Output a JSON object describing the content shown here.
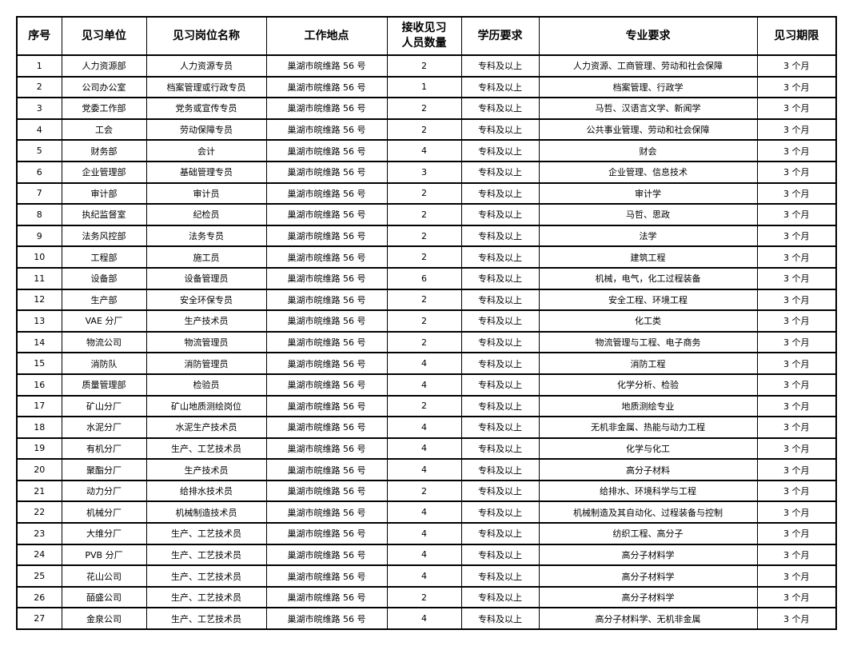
{
  "headers": [
    "序号",
    "见习单位",
    "见习岗位名称",
    "工作地点",
    "接收见习\n人员数量",
    "学历要求",
    "专业要求",
    "见习期限"
  ],
  "headers_lines": {
    "count_1": "接收见习",
    "count_2": "人员数量"
  },
  "rows": [
    [
      "1",
      "人力资源部",
      "人力资源专员",
      "巢湖市皖维路 56 号",
      "2",
      "专科及以上",
      "人力资源、工商管理、劳动和社会保障",
      "3 个月"
    ],
    [
      "2",
      "公司办公室",
      "档案管理或行政专员",
      "巢湖市皖维路 56 号",
      "1",
      "专科及以上",
      "档案管理、行政学",
      "3 个月"
    ],
    [
      "3",
      "党委工作部",
      "党务或宣传专员",
      "巢湖市皖维路 56 号",
      "2",
      "专科及以上",
      "马哲、汉语言文学、新闻学",
      "3 个月"
    ],
    [
      "4",
      "工会",
      "劳动保障专员",
      "巢湖市皖维路 56 号",
      "2",
      "专科及以上",
      "公共事业管理、劳动和社会保障",
      "3 个月"
    ],
    [
      "5",
      "财务部",
      "会计",
      "巢湖市皖维路 56 号",
      "4",
      "专科及以上",
      "财会",
      "3 个月"
    ],
    [
      "6",
      "企业管理部",
      "基础管理专员",
      "巢湖市皖维路 56 号",
      "3",
      "专科及以上",
      "企业管理、信息技术",
      "3 个月"
    ],
    [
      "7",
      "审计部",
      "审计员",
      "巢湖市皖维路 56 号",
      "2",
      "专科及以上",
      "审计学",
      "3 个月"
    ],
    [
      "8",
      "执纪监督室",
      "纪检员",
      "巢湖市皖维路 56 号",
      "2",
      "专科及以上",
      "马哲、思政",
      "3 个月"
    ],
    [
      "9",
      "法务风控部",
      "法务专员",
      "巢湖市皖维路 56 号",
      "2",
      "专科及以上",
      "法学",
      "3 个月"
    ],
    [
      "10",
      "工程部",
      "施工员",
      "巢湖市皖维路 56 号",
      "2",
      "专科及以上",
      "建筑工程",
      "3 个月"
    ],
    [
      "11",
      "设备部",
      "设备管理员",
      "巢湖市皖维路 56 号",
      "6",
      "专科及以上",
      "机械，电气，化工过程装备",
      "3 个月"
    ],
    [
      "12",
      "生产部",
      "安全环保专员",
      "巢湖市皖维路 56 号",
      "2",
      "专科及以上",
      "安全工程、环境工程",
      "3 个月"
    ],
    [
      "13",
      "VAE 分厂",
      "生产技术员",
      "巢湖市皖维路 56 号",
      "2",
      "专科及以上",
      "化工类",
      "3 个月"
    ],
    [
      "14",
      "物流公司",
      "物流管理员",
      "巢湖市皖维路 56 号",
      "2",
      "专科及以上",
      "物流管理与工程、电子商务",
      "3 个月"
    ],
    [
      "15",
      "消防队",
      "消防管理员",
      "巢湖市皖维路 56 号",
      "4",
      "专科及以上",
      "消防工程",
      "3 个月"
    ],
    [
      "16",
      "质量管理部",
      "检验员",
      "巢湖市皖维路 56 号",
      "4",
      "专科及以上",
      "化学分析、检验",
      "3 个月"
    ],
    [
      "17",
      "矿山分厂",
      "矿山地质测绘岗位",
      "巢湖市皖维路 56 号",
      "2",
      "专科及以上",
      "地质测绘专业",
      "3 个月"
    ],
    [
      "18",
      "水泥分厂",
      "水泥生产技术员",
      "巢湖市皖维路 56 号",
      "4",
      "专科及以上",
      "无机非金属、热能与动力工程",
      "3 个月"
    ],
    [
      "19",
      "有机分厂",
      "生产、工艺技术员",
      "巢湖市皖维路 56 号",
      "4",
      "专科及以上",
      "化学与化工",
      "3 个月"
    ],
    [
      "20",
      "聚酯分厂",
      "生产技术员",
      "巢湖市皖维路 56 号",
      "4",
      "专科及以上",
      "高分子材料",
      "3 个月"
    ],
    [
      "21",
      "动力分厂",
      "给排水技术员",
      "巢湖市皖维路 56 号",
      "2",
      "专科及以上",
      "给排水、环境科学与工程",
      "3 个月"
    ],
    [
      "22",
      "机械分厂",
      "机械制造技术员",
      "巢湖市皖维路 56 号",
      "4",
      "专科及以上",
      "机械制造及其自动化、过程装备与控制",
      "3 个月"
    ],
    [
      "23",
      "大维分厂",
      "生产、工艺技术员",
      "巢湖市皖维路 56 号",
      "4",
      "专科及以上",
      "纺织工程、高分子",
      "3 个月"
    ],
    [
      "24",
      "PVB 分厂",
      "生产、工艺技术员",
      "巢湖市皖维路 56 号",
      "4",
      "专科及以上",
      "高分子材料学",
      "3 个月"
    ],
    [
      "25",
      "花山公司",
      "生产、工艺技术员",
      "巢湖市皖维路 56 号",
      "4",
      "专科及以上",
      "高分子材料学",
      "3 个月"
    ],
    [
      "26",
      "皕盛公司",
      "生产、工艺技术员",
      "巢湖市皖维路 56 号",
      "2",
      "专科及以上",
      "高分子材料学",
      "3 个月"
    ],
    [
      "27",
      "金泉公司",
      "生产、工艺技术员",
      "巢湖市皖维路 56 号",
      "4",
      "专科及以上",
      "高分子材料学、无机非金属",
      "3 个月"
    ]
  ]
}
